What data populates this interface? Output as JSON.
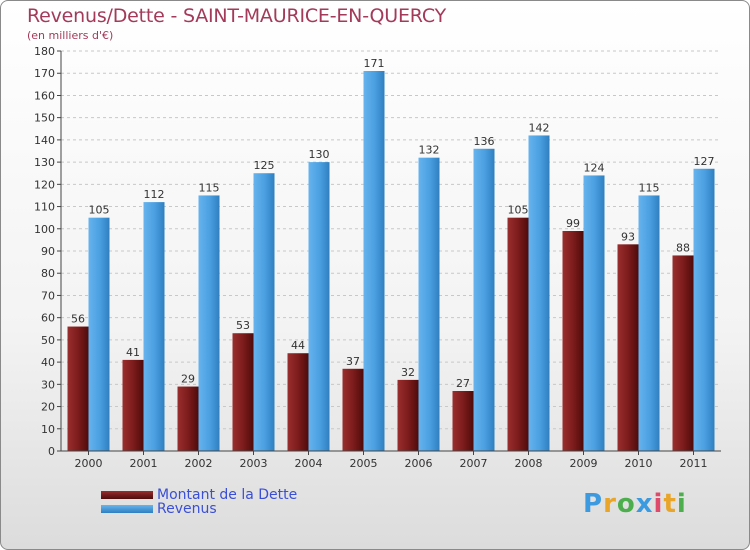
{
  "chart_data": {
    "type": "bar",
    "title": "Revenus/Dette - SAINT-MAURICE-EN-QUERCY",
    "subtitle": "(en milliers d'€)",
    "categories": [
      "2000",
      "2001",
      "2002",
      "2003",
      "2004",
      "2005",
      "2006",
      "2007",
      "2008",
      "2009",
      "2010",
      "2011"
    ],
    "series": [
      {
        "name": "Montant de la Dette",
        "color": "#7a1a1a",
        "values": [
          56,
          41,
          29,
          53,
          44,
          37,
          32,
          27,
          105,
          99,
          93,
          88
        ]
      },
      {
        "name": "Revenus",
        "color": "#4a9fe0",
        "values": [
          105,
          112,
          115,
          125,
          130,
          171,
          132,
          136,
          142,
          124,
          115,
          127
        ]
      }
    ],
    "yticks": [
      0,
      10,
      20,
      30,
      40,
      50,
      60,
      70,
      80,
      90,
      100,
      110,
      120,
      130,
      140,
      150,
      160,
      170,
      180
    ],
    "ylim": [
      0,
      180
    ],
    "grid": true,
    "legend_position": "bottom-left"
  },
  "branding": {
    "logo_letters": [
      "P",
      "r",
      "o",
      "x",
      "i",
      "t",
      "i"
    ],
    "logo_colors": [
      "#3c9be0",
      "#e8a52a",
      "#4cae4c",
      "#3c9be0",
      "#e04a6a",
      "#e8a52a",
      "#4cae4c"
    ]
  }
}
